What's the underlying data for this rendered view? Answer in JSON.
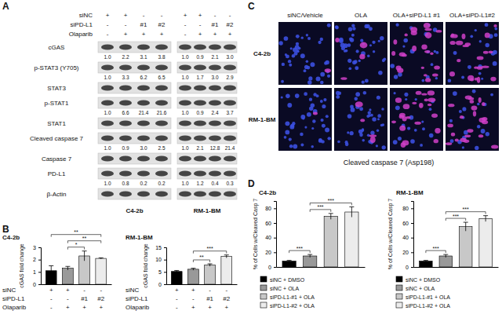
{
  "panel_labels": [
    "A",
    "B",
    "C",
    "D"
  ],
  "blot": {
    "header_rows": [
      {
        "label": "siNC",
        "left": [
          "+",
          "+",
          "-",
          "-"
        ],
        "right": [
          "+",
          "+",
          "-",
          "-"
        ]
      },
      {
        "label": "siPD-L1",
        "left": [
          "-",
          "-",
          "#1",
          "#2"
        ],
        "right": [
          "-",
          "-",
          "#1",
          "#2"
        ]
      },
      {
        "label": "Olaparib",
        "left": [
          "-",
          "+",
          "+",
          "+"
        ],
        "right": [
          "-",
          "+",
          "+",
          "+"
        ]
      }
    ],
    "rows": [
      {
        "label": "cGAS",
        "left": [
          "1.0",
          "2.2",
          "3.1",
          "3.8"
        ],
        "right": [
          "1.0",
          "0.9",
          "2.1",
          "3.0"
        ]
      },
      {
        "label": "p-STAT3 (Y705)",
        "left": [
          "1.0",
          "3.3",
          "6.2",
          "6.5"
        ],
        "right": [
          "1.0",
          "1.7",
          "3.0",
          "2.9"
        ]
      },
      {
        "label": "STAT3"
      },
      {
        "label": "p-STAT1",
        "left": [
          "1.0",
          "6.6",
          "21.4",
          "21.6"
        ],
        "right": [
          "1.0",
          "0.9",
          "2.4",
          "3.7"
        ]
      },
      {
        "label": "STAT1"
      },
      {
        "label": "Cleaved caspase 7",
        "left": [
          "1.0",
          "0.9",
          "3.0",
          "2.5"
        ],
        "right": [
          "1.0",
          "2.1",
          "12.8",
          "21.4"
        ]
      },
      {
        "label": "Caspase 7"
      },
      {
        "label": "PD-L1",
        "left": [
          "1.0",
          "0.8",
          "0.2",
          "0.2"
        ],
        "right": [
          "1.0",
          "1.2",
          "0.4",
          "0.3"
        ]
      },
      {
        "label": "β-Actin"
      }
    ],
    "cell_lines": [
      "C4-2b",
      "RM-1-BM"
    ]
  },
  "images": {
    "columns": [
      "siNC/Vehicle",
      "OLA",
      "OLA+siPD-L1 #1",
      "OLA+siPD-L1#2"
    ],
    "rows": [
      "C4-2b",
      "RM-1-BM"
    ],
    "caption": "Cleaved caspase 7 (Asp198)"
  },
  "chart_data": [
    {
      "type": "bar",
      "title": "C4-2b",
      "y_label": "cGAS fold change",
      "categories": [
        null,
        null,
        null,
        null
      ],
      "values": [
        1.1,
        1.3,
        2.3,
        2.1
      ],
      "errors": [
        0.4,
        0.15,
        0.4,
        0.05
      ],
      "colors": [
        "#000000",
        "#999999",
        "#c8c8c8",
        "#ececec"
      ],
      "ylim": [
        0,
        3
      ],
      "yticks": [
        0,
        1,
        2,
        3
      ],
      "tick_labels": "y",
      "condition_table": [
        {
          "label": "siNC",
          "values": [
            "+",
            "+",
            "-",
            "-"
          ]
        },
        {
          "label": "siPD-L1",
          "values": [
            "-",
            "-",
            "#1",
            "#2"
          ]
        },
        {
          "label": "Olaparib",
          "values": [
            "-",
            "+",
            "+",
            "+"
          ]
        }
      ],
      "annotations": [
        {
          "text": "*",
          "from": 1,
          "to": 2
        },
        {
          "text": "**",
          "from": 1,
          "to": 3
        },
        {
          "text": "**",
          "from": 0,
          "to": 3
        }
      ]
    },
    {
      "type": "bar",
      "title": "RM-1-BM",
      "y_label": "cGAS fold change",
      "categories": [
        null,
        null,
        null,
        null
      ],
      "values": [
        5.2,
        6.1,
        7.8,
        11.3
      ],
      "errors": [
        0.4,
        0.4,
        0.5,
        0.6
      ],
      "colors": [
        "#000000",
        "#999999",
        "#c8c8c8",
        "#ececec"
      ],
      "ylim": [
        0,
        15
      ],
      "yticks": [
        0,
        5,
        10,
        15
      ],
      "tick_labels": "y",
      "condition_table": [
        {
          "label": "siNC",
          "values": [
            "+",
            "+",
            "-",
            "-"
          ]
        },
        {
          "label": "siPD-L1",
          "values": [
            "-",
            "-",
            "#1",
            "#2"
          ]
        },
        {
          "label": "Olaparib",
          "values": [
            "-",
            "+",
            "+",
            "+"
          ]
        }
      ],
      "annotations": [
        {
          "text": "**",
          "from": 1,
          "to": 2
        },
        {
          "text": "***",
          "from": 1,
          "to": 3
        }
      ]
    },
    {
      "type": "bar",
      "title": "C4-2b",
      "y_label": "% of Cells w/Cleaved Casp 7",
      "categories": [
        "siNC + DMSO",
        "siNC + OLA",
        "siPD-L1-#1 + OLA",
        "siPD-L1-#2 + OLA"
      ],
      "values": [
        8,
        15,
        69,
        75
      ],
      "errors": [
        1,
        2,
        4,
        7
      ],
      "colors": [
        "#000000",
        "#999999",
        "#c8c8c8",
        "#ececec"
      ],
      "ylim": [
        0,
        90
      ],
      "yticks": [
        0,
        20,
        40,
        60,
        80
      ],
      "tick_labels": "y",
      "legend": "bottom",
      "annotations": [
        {
          "text": "***",
          "from": 0,
          "to": 1
        },
        {
          "text": "***",
          "from": 1,
          "to": 2
        },
        {
          "text": "***",
          "from": 1,
          "to": 3
        }
      ]
    },
    {
      "type": "bar",
      "title": "RM-1-BM",
      "y_label": "% of Cells w/Cleaved Casp 7",
      "categories": [
        "siNC + DMSO",
        "siNC + OLA",
        "siPD-L1-#1 + OLA",
        "siPD-L1-#2 + OLA"
      ],
      "values": [
        8,
        15,
        55,
        66
      ],
      "errors": [
        1,
        2,
        6,
        4
      ],
      "colors": [
        "#000000",
        "#999999",
        "#c8c8c8",
        "#ececec"
      ],
      "ylim": [
        0,
        90
      ],
      "yticks": [
        0,
        20,
        40,
        60,
        80
      ],
      "tick_labels": "y",
      "legend": "bottom",
      "annotations": [
        {
          "text": "***",
          "from": 0,
          "to": 1
        },
        {
          "text": "***",
          "from": 1,
          "to": 2
        },
        {
          "text": "***",
          "from": 1,
          "to": 3
        }
      ]
    }
  ]
}
